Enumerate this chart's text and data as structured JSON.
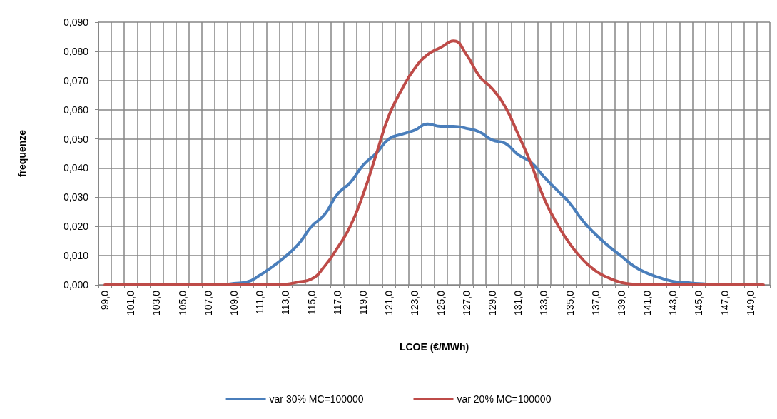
{
  "chart_data": {
    "type": "line",
    "xlabel": "LCOE (€/MWh)",
    "ylabel": "frequenze",
    "categories": [
      "99,0",
      null,
      "101,0",
      null,
      "103,0",
      null,
      "105,0",
      null,
      "107,0",
      null,
      "109,0",
      null,
      "111,0",
      null,
      "113,0",
      null,
      "115,0",
      null,
      "117,0",
      null,
      "119,0",
      null,
      "121,0",
      null,
      "123,0",
      null,
      "125,0",
      null,
      "127,0",
      null,
      "129,0",
      null,
      "131,0",
      null,
      "133,0",
      null,
      "135,0",
      null,
      "137,0",
      null,
      "139,0",
      null,
      "141,0",
      null,
      "143,0",
      null,
      "145,0",
      null,
      "147,0",
      null,
      "149,0",
      null
    ],
    "series": [
      {
        "name": "var 30% MC=100000",
        "color": "#4a7ebb",
        "values": [
          null,
          null,
          null,
          null,
          null,
          null,
          null,
          null,
          0,
          0,
          0.0005,
          0.001,
          0.0033,
          0.0063,
          0.0098,
          0.014,
          0.02,
          0.024,
          0.031,
          0.035,
          0.041,
          0.045,
          0.05,
          0.0516,
          0.053,
          0.0551,
          0.0543,
          0.0543,
          0.0536,
          0.0524,
          0.0496,
          0.0485,
          0.0446,
          0.042,
          0.037,
          0.0325,
          0.028,
          0.022,
          0.0173,
          0.0133,
          0.0098,
          0.0063,
          0.004,
          0.0024,
          0.0012,
          0.0008,
          0.0004,
          0.0002,
          0,
          0,
          null,
          null
        ]
      },
      {
        "name": "var 20% MC=100000",
        "color": "#be4b48",
        "values": [
          0,
          0,
          0,
          0,
          0,
          0,
          0,
          0,
          0,
          0,
          0,
          0,
          0,
          0,
          0.0002,
          0.001,
          0.002,
          0.0063,
          0.0126,
          0.02,
          0.031,
          0.0445,
          0.058,
          0.067,
          0.0742,
          0.0789,
          0.0813,
          0.0836,
          0.0789,
          0.0715,
          0.0672,
          0.061,
          0.0516,
          0.0415,
          0.0297,
          0.0211,
          0.0141,
          0.0087,
          0.0048,
          0.0024,
          0.0008,
          0.0002,
          0,
          0,
          0,
          0,
          0,
          0,
          0,
          0,
          0,
          0
        ]
      }
    ],
    "ylim": [
      0,
      0.09
    ],
    "yticks": [
      {
        "value": 0,
        "label": "0,000"
      },
      {
        "value": 0.01,
        "label": "0,010"
      },
      {
        "value": 0.02,
        "label": "0,020"
      },
      {
        "value": 0.03,
        "label": "0,030"
      },
      {
        "value": 0.04,
        "label": "0,040"
      },
      {
        "value": 0.05,
        "label": "0,050"
      },
      {
        "value": 0.06,
        "label": "0,060"
      },
      {
        "value": 0.07,
        "label": "0,070"
      },
      {
        "value": 0.08,
        "label": "0,080"
      },
      {
        "value": 0.09,
        "label": "0,090"
      }
    ],
    "grid": true,
    "legend": "bottom",
    "marker": "none",
    "line_style": "solid"
  }
}
